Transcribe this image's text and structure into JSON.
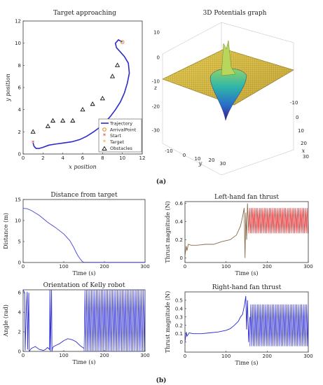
{
  "captions": {
    "top": "(a)",
    "bottom": "(b)"
  },
  "chart_data": [
    {
      "type": "line",
      "title": "Target approaching",
      "xlabel": "x position",
      "ylabel": "y position",
      "xlim": [
        0,
        12
      ],
      "ylim": [
        0,
        12
      ],
      "xticks": [
        "0",
        "2",
        "4",
        "6",
        "8",
        "10",
        "12"
      ],
      "yticks": [
        "0",
        "2",
        "4",
        "6",
        "8",
        "10",
        "12"
      ],
      "legend": [
        "Trajectory",
        "ArrivalPoint",
        "Start",
        "Target",
        "Obstacles"
      ],
      "legend_position": "bottom-right",
      "colors": {
        "trajectory": "#2b2bcc",
        "arrival": "#d58a1e",
        "start": "#cc2222",
        "target": "#d5a01e",
        "obstacles": "#111111"
      },
      "trajectory": {
        "x": [
          1.0,
          1.1,
          1.3,
          1.6,
          2.0,
          2.6,
          3.3,
          4.1,
          4.9,
          5.7,
          6.4,
          7.1,
          7.7,
          8.3,
          8.8,
          9.3,
          9.8,
          10.2,
          10.5,
          10.7,
          10.6,
          10.2,
          9.8,
          9.4,
          9.3,
          9.6,
          10.0
        ],
        "y": [
          1.0,
          0.7,
          0.5,
          0.5,
          0.6,
          0.8,
          0.9,
          1.0,
          1.1,
          1.3,
          1.6,
          2.0,
          2.4,
          2.9,
          3.4,
          4.0,
          4.7,
          5.5,
          6.4,
          7.3,
          8.2,
          8.8,
          9.2,
          9.6,
          10.0,
          10.3,
          10.1
        ]
      },
      "start": {
        "x": 1.0,
        "y": 1.0
      },
      "arrival": {
        "x": 10.0,
        "y": 10.1
      },
      "target": {
        "x": 10.0,
        "y": 10.0
      },
      "obstacles": {
        "x": [
          1.0,
          2.5,
          3.0,
          4.0,
          5.0,
          6.0,
          7.0,
          8.0,
          9.0,
          9.5
        ],
        "y": [
          2.0,
          2.5,
          3.0,
          3.0,
          3.0,
          4.0,
          4.5,
          5.0,
          7.0,
          8.0
        ]
      }
    },
    {
      "type": "surface",
      "title": "3D Potentials graph",
      "xlabel": "x",
      "ylabel": "y",
      "zlabel": "z",
      "xticks": [
        "-10",
        "0",
        "10",
        "20",
        "30"
      ],
      "yticks": [
        "-10",
        "0",
        "10",
        "20",
        "30"
      ],
      "zticks": [
        "10",
        "0",
        "-10",
        "-20",
        "-30"
      ],
      "zlim": [
        -30,
        10
      ]
    },
    {
      "type": "line",
      "title": "Distance from target",
      "xlabel": "Time (s)",
      "ylabel": "Distance (m)",
      "xlim": [
        0,
        300
      ],
      "ylim": [
        0,
        15
      ],
      "xticks": [
        "0",
        "100",
        "200",
        "300"
      ],
      "yticks": [
        "0",
        "5",
        "10",
        "15"
      ],
      "color": "#4545d8",
      "x": [
        0,
        10,
        20,
        40,
        60,
        80,
        100,
        115,
        125,
        130,
        135,
        140,
        145,
        148,
        150,
        160,
        200,
        250,
        300
      ],
      "y": [
        12.9,
        12.8,
        12.4,
        11.2,
        9.6,
        8.3,
        6.8,
        5.2,
        3.5,
        2.5,
        1.6,
        0.9,
        0.3,
        0.1,
        0.05,
        0.05,
        0.05,
        0.05,
        0.05
      ]
    },
    {
      "type": "line",
      "title": "Left-hand fan thrust",
      "xlabel": "Time (s)",
      "ylabel": "Thrust magnitude (N)",
      "xlim": [
        0,
        300
      ],
      "ylim": [
        -0.05,
        0.62
      ],
      "xticks": [
        "0",
        "100",
        "200",
        "300"
      ],
      "yticks": [
        "0",
        "0.2",
        "0.4",
        "0.6"
      ],
      "color": "#8a6b4d",
      "color_oscillation": "#e02020",
      "x": [
        0,
        3,
        5,
        8,
        15,
        30,
        50,
        70,
        90,
        110,
        125,
        135,
        140,
        144,
        146,
        148,
        150,
        152,
        155
      ],
      "y": [
        0.02,
        0.13,
        0.08,
        0.15,
        0.14,
        0.14,
        0.15,
        0.15,
        0.18,
        0.2,
        0.25,
        0.35,
        0.45,
        0.55,
        0.0,
        0.5,
        0.2,
        0.6,
        0.3
      ],
      "oscillation": {
        "from": 155,
        "to": 300,
        "low": 0.27,
        "high": 0.55,
        "period": 4
      }
    },
    {
      "type": "line",
      "title": "Orientation of Kelly robot",
      "xlabel": "Time (s)",
      "ylabel": "Angle (rad)",
      "xlim": [
        0,
        300
      ],
      "ylim": [
        0,
        6.3
      ],
      "xticks": [
        "0",
        "100",
        "200",
        "300"
      ],
      "yticks": [
        "0",
        "2",
        "4",
        "6"
      ],
      "color": "#3030d0",
      "x": [
        0,
        4,
        5,
        8,
        10,
        11,
        14,
        15,
        20,
        30,
        40,
        50,
        55,
        60,
        65,
        66,
        67,
        70,
        71,
        72,
        75,
        80,
        90,
        100,
        110,
        120,
        130,
        140,
        150
      ],
      "y": [
        6.28,
        6.0,
        0.1,
        4.5,
        6.1,
        0.2,
        6.0,
        0.0,
        0.3,
        0.5,
        0.2,
        0.1,
        0.2,
        0.4,
        0.2,
        6.28,
        0.0,
        6.28,
        0.0,
        0.3,
        0.5,
        0.6,
        0.8,
        1.1,
        1.3,
        1.2,
        1.0,
        0.6,
        0.3
      ],
      "oscillation": {
        "from": 150,
        "to": 300,
        "low": 0.0,
        "high": 6.28,
        "period": 4
      }
    },
    {
      "type": "line",
      "title": "Right-hand fan thrust",
      "xlabel": "Time (s)",
      "ylabel": "Thrust magnitude (N)",
      "xlim": [
        0,
        300
      ],
      "ylim": [
        -0.12,
        0.6
      ],
      "xticks": [
        "0",
        "100",
        "200",
        "300"
      ],
      "yticks": [
        "0",
        "0.1",
        "0.2",
        "0.3",
        "0.4",
        "0.5"
      ],
      "color": "#2a2ad0",
      "x": [
        0,
        3,
        5,
        10,
        20,
        40,
        60,
        80,
        100,
        110,
        120,
        130,
        135,
        140,
        145,
        148,
        150,
        152,
        155,
        158
      ],
      "y": [
        0.0,
        0.12,
        0.07,
        0.11,
        0.1,
        0.1,
        0.11,
        0.12,
        0.14,
        0.16,
        0.2,
        0.25,
        0.3,
        0.33,
        0.45,
        0.55,
        0.15,
        0.5,
        0.0,
        0.3
      ],
      "oscillation": {
        "from": 158,
        "to": 300,
        "low": -0.05,
        "high": 0.45,
        "period": 4
      }
    }
  ]
}
